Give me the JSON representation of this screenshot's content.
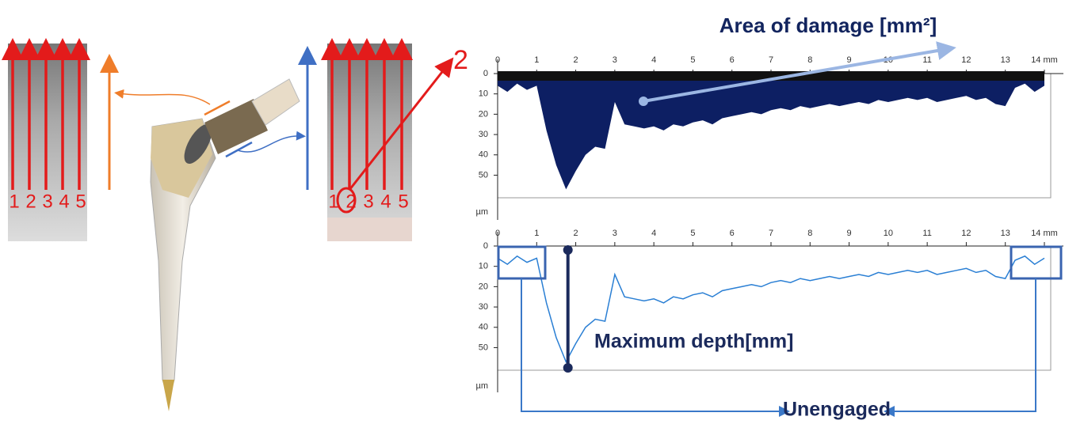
{
  "implant": {
    "left_strip_labels": [
      "1",
      "2",
      "3",
      "4",
      "5"
    ],
    "right_strip_labels": [
      "1",
      "2",
      "3",
      "4",
      "5"
    ],
    "zoom_label": "2"
  },
  "chart_data": [
    {
      "type": "area",
      "color": "#0d1f63",
      "ylabel": "µm",
      "y_inverted": true,
      "annotation": "Area of damage [mm²]",
      "xlim": [
        0,
        14
      ],
      "xticks": [
        0,
        1,
        2,
        3,
        4,
        5,
        6,
        7,
        8,
        9,
        10,
        11,
        12,
        13,
        {
          "value": 14,
          "label": "14 mm"
        }
      ],
      "ylim": [
        0,
        58
      ],
      "yticks": [
        0,
        10,
        20,
        30,
        40,
        50
      ],
      "x": [
        0,
        0.25,
        0.5,
        0.75,
        1,
        1.25,
        1.5,
        1.75,
        2,
        2.25,
        2.5,
        2.75,
        3,
        3.25,
        3.5,
        3.75,
        4,
        4.25,
        4.5,
        4.75,
        5,
        5.25,
        5.5,
        5.75,
        6,
        6.25,
        6.5,
        6.75,
        7,
        7.25,
        7.5,
        7.75,
        8,
        8.25,
        8.5,
        8.75,
        9,
        9.25,
        9.5,
        9.75,
        10,
        10.25,
        10.5,
        10.75,
        11,
        11.25,
        11.5,
        11.75,
        12,
        12.25,
        12.5,
        12.75,
        13,
        13.25,
        13.5,
        13.75,
        14
      ],
      "values": [
        6,
        9,
        5,
        8,
        6,
        28,
        45,
        57,
        48,
        40,
        36,
        37,
        14,
        25,
        26,
        27,
        26,
        28,
        25,
        26,
        24,
        23,
        25,
        22,
        21,
        20,
        19,
        20,
        18,
        17,
        18,
        16,
        17,
        16,
        15,
        16,
        15,
        14,
        15,
        13,
        14,
        13,
        12,
        13,
        12,
        14,
        13,
        12,
        11,
        13,
        12,
        15,
        16,
        7,
        5,
        9,
        6
      ]
    },
    {
      "type": "line",
      "color": "#2a7fd4",
      "ylabel": "µm",
      "y_inverted": true,
      "annotations": [
        "Maximum depth[mm]",
        "Unengaged"
      ],
      "xlim": [
        0,
        14
      ],
      "xticks": [
        0,
        1,
        2,
        3,
        4,
        5,
        6,
        7,
        8,
        9,
        10,
        11,
        12,
        13,
        {
          "value": 14,
          "label": "14 mm"
        }
      ],
      "ylim": [
        0,
        58
      ],
      "yticks": [
        0,
        10,
        20,
        30,
        40,
        50
      ],
      "x": [
        0,
        0.25,
        0.5,
        0.75,
        1,
        1.25,
        1.5,
        1.75,
        2,
        2.25,
        2.5,
        2.75,
        3,
        3.25,
        3.5,
        3.75,
        4,
        4.25,
        4.5,
        4.75,
        5,
        5.25,
        5.5,
        5.75,
        6,
        6.25,
        6.5,
        6.75,
        7,
        7.25,
        7.5,
        7.75,
        8,
        8.25,
        8.5,
        8.75,
        9,
        9.25,
        9.5,
        9.75,
        10,
        10.25,
        10.5,
        10.75,
        11,
        11.25,
        11.5,
        11.75,
        12,
        12.25,
        12.5,
        12.75,
        13,
        13.25,
        13.5,
        13.75,
        14
      ],
      "values": [
        6,
        9,
        5,
        8,
        6,
        28,
        45,
        57,
        48,
        40,
        36,
        37,
        14,
        25,
        26,
        27,
        26,
        28,
        25,
        26,
        24,
        23,
        25,
        22,
        21,
        20,
        19,
        20,
        18,
        17,
        18,
        16,
        17,
        16,
        15,
        16,
        15,
        14,
        15,
        13,
        14,
        13,
        12,
        13,
        12,
        14,
        13,
        12,
        11,
        13,
        12,
        15,
        16,
        7,
        5,
        9,
        6
      ]
    }
  ]
}
